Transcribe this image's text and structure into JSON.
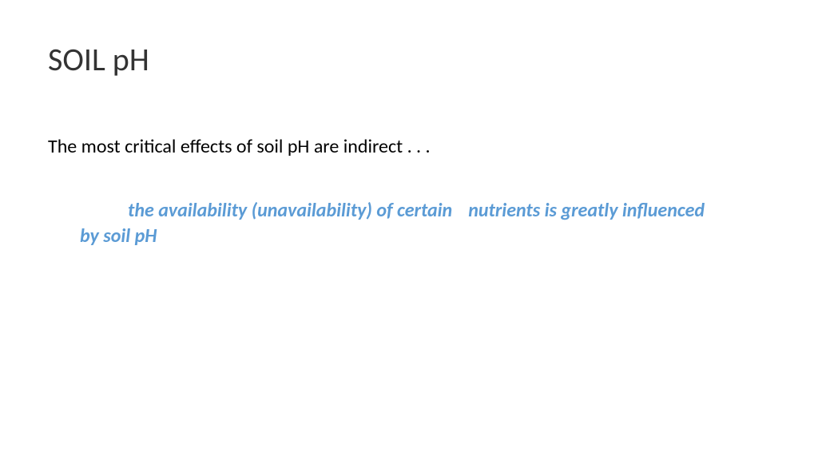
{
  "slide": {
    "title": "SOIL pH",
    "body_line": "The most critical effects of soil pH are indirect . . .",
    "emphasis_part1": "the availability (unavailability) of certain",
    "emphasis_part2": "nutrients is greatly influenced by soil pH"
  },
  "style": {
    "title_color": "#333333",
    "title_fontsize": 40,
    "body_color": "#000000",
    "body_fontsize": 24,
    "emphasis_color": "#5b9bd5",
    "emphasis_fontsize": 24,
    "background_color": "#ffffff"
  }
}
